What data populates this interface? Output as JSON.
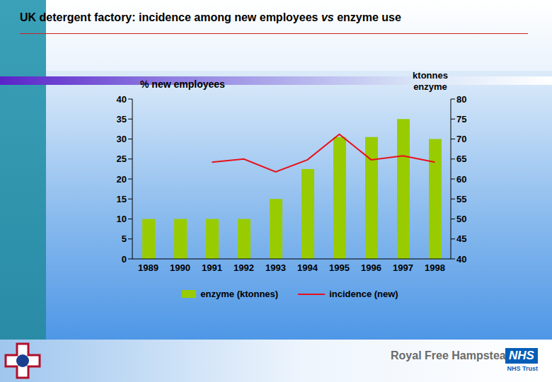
{
  "chart_data": {
    "type": "bar",
    "title": "UK detergent factory: incidence among new employees vs enzyme use",
    "categories": [
      "1989",
      "1990",
      "1991",
      "1992",
      "1993",
      "1994",
      "1995",
      "1996",
      "1997",
      "1998"
    ],
    "y_label": "% new employees",
    "y2_label": "ktonnes enzyme",
    "ylim": [
      0,
      40
    ],
    "yticks": [
      0,
      5,
      10,
      15,
      20,
      25,
      30,
      35,
      40
    ],
    "y2lim": [
      40,
      80
    ],
    "y2ticks": [
      40,
      45,
      50,
      55,
      60,
      65,
      70,
      75,
      80
    ],
    "grid": false,
    "legend": "bottom",
    "series": [
      {
        "name": "enzyme (ktonnes)",
        "type": "bar",
        "color": "#99cc00",
        "axis": "y2",
        "values": [
          50,
          50,
          50,
          50,
          55,
          62.5,
          70.5,
          70.5,
          75,
          70
        ]
      },
      {
        "name": "incidence (new)",
        "type": "line",
        "color": "#e8101a",
        "values": [
          null,
          null,
          24.2,
          25,
          21.8,
          24.8,
          31.2,
          24.8,
          25.8,
          24.2
        ]
      }
    ]
  },
  "footer": {
    "organisation": "Royal Free Hampstead",
    "badge": "NHS",
    "trust": "NHS Trust"
  }
}
